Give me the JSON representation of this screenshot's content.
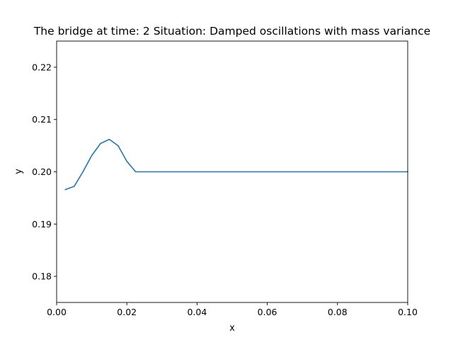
{
  "chart_data": {
    "type": "line",
    "title": "The bridge at time: 2 Situation: Damped oscillations with mass variance",
    "xlabel": "x",
    "ylabel": "y",
    "xlim": [
      0.0,
      0.1
    ],
    "ylim": [
      0.175,
      0.225
    ],
    "xticks": [
      0.0,
      0.02,
      0.04,
      0.06,
      0.08,
      0.1
    ],
    "xtick_labels": [
      "0.00",
      "0.02",
      "0.04",
      "0.06",
      "0.08",
      "0.10"
    ],
    "yticks": [
      0.18,
      0.19,
      0.2,
      0.21,
      0.22
    ],
    "ytick_labels": [
      "0.18",
      "0.19",
      "0.20",
      "0.21",
      "0.22"
    ],
    "grid": false,
    "series": [
      {
        "color": "#1f77b4",
        "x": [
          0.0025,
          0.005,
          0.0075,
          0.01,
          0.0125,
          0.015,
          0.0175,
          0.02,
          0.0225,
          0.025,
          0.03,
          0.04,
          0.05,
          0.06,
          0.07,
          0.08,
          0.09,
          0.1
        ],
        "y": [
          0.1966,
          0.1972,
          0.2,
          0.2031,
          0.2054,
          0.2062,
          0.205,
          0.202,
          0.2,
          0.2,
          0.2,
          0.2,
          0.2,
          0.2,
          0.2,
          0.2,
          0.2,
          0.2
        ]
      }
    ]
  }
}
